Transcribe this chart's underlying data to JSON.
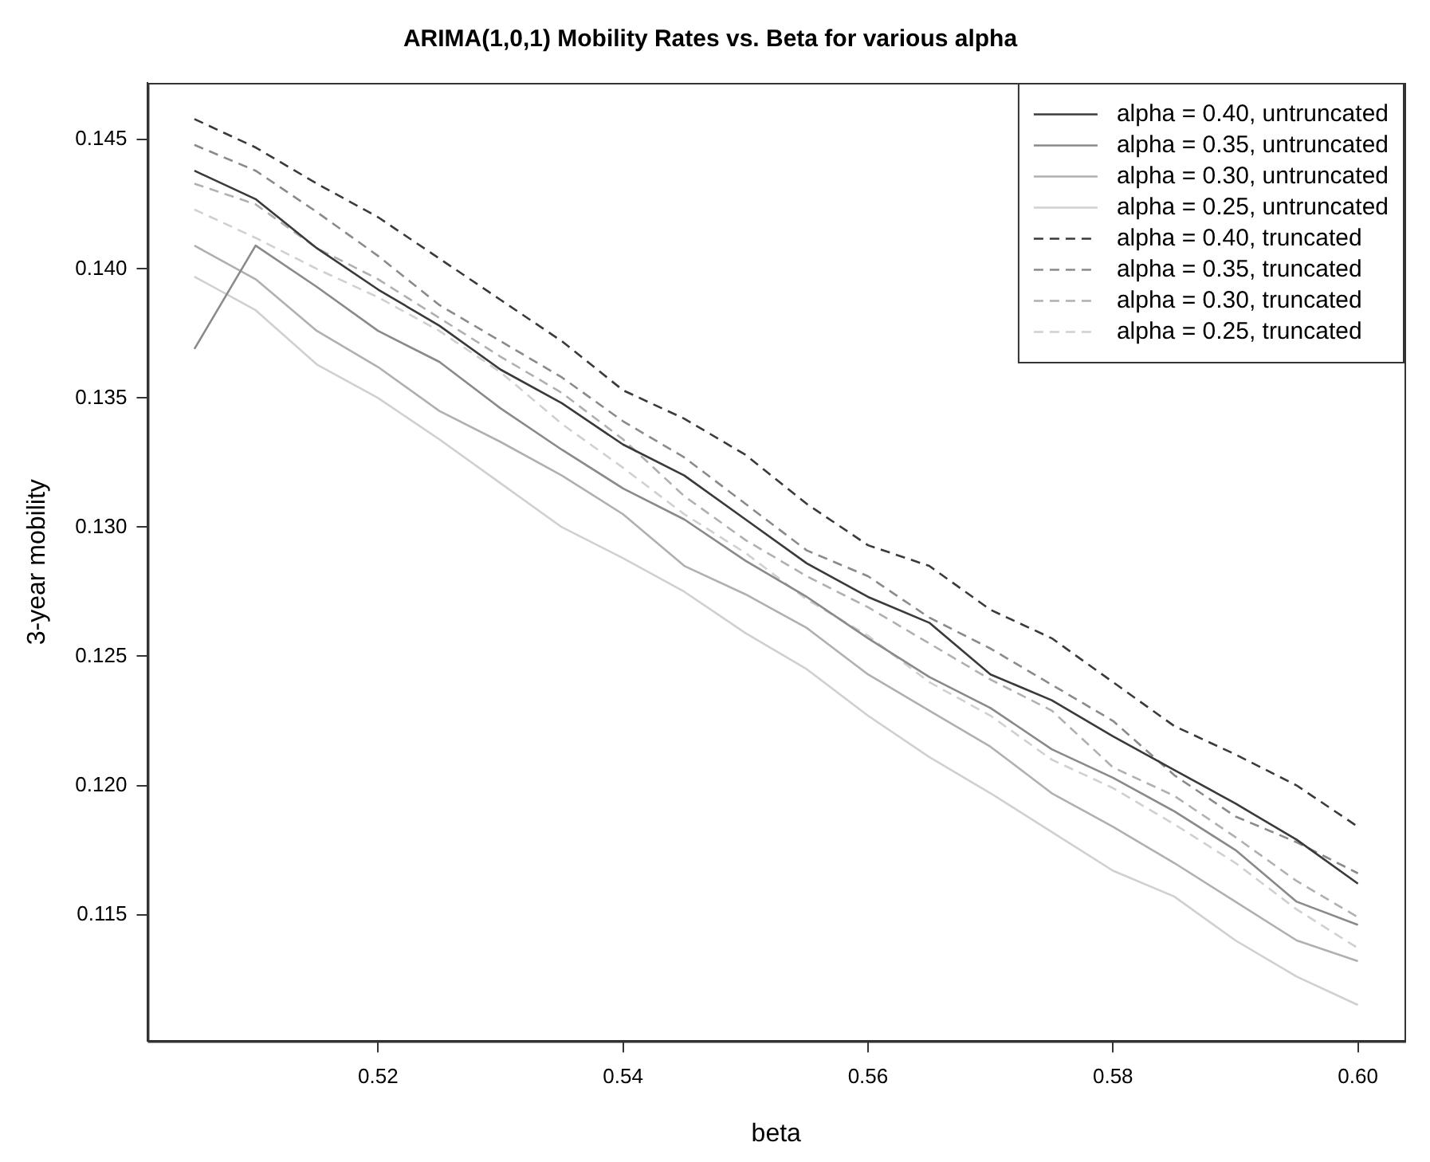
{
  "chart_data": {
    "type": "line",
    "title": "ARIMA(1,0,1) Mobility Rates vs. Beta for various alpha",
    "xlabel": "beta",
    "ylabel": "3-year mobility",
    "x": [
      0.505,
      0.51,
      0.515,
      0.52,
      0.525,
      0.53,
      0.535,
      0.54,
      0.545,
      0.55,
      0.555,
      0.56,
      0.565,
      0.57,
      0.575,
      0.58,
      0.585,
      0.59,
      0.595,
      0.6
    ],
    "xlim": [
      0.5012,
      0.6038
    ],
    "xticks": [
      {
        "value": 0.52,
        "label": "0.52"
      },
      {
        "value": 0.54,
        "label": "0.54"
      },
      {
        "value": 0.56,
        "label": "0.56"
      },
      {
        "value": 0.58,
        "label": "0.58"
      },
      {
        "value": 0.6,
        "label": "0.60"
      }
    ],
    "ylim": [
      0.1101,
      0.1472
    ],
    "yticks": [
      0.115,
      {
        "value": 0.12,
        "label": "0.120"
      },
      0.125,
      {
        "value": 0.13,
        "label": "0.130"
      },
      0.135,
      {
        "value": 0.14,
        "label": "0.140"
      },
      0.145
    ],
    "grid": false,
    "legend": "top right",
    "marker": "none",
    "series": [
      {
        "name": "alpha = 0.40, untruncated",
        "color": "#3a3a3a",
        "line_style": "solid",
        "values": [
          0.1438,
          0.1427,
          0.1408,
          0.1392,
          0.1378,
          0.1361,
          0.1348,
          0.1332,
          0.132,
          0.1303,
          0.1286,
          0.1273,
          0.1263,
          0.1243,
          0.1233,
          0.1219,
          0.1206,
          0.1193,
          0.1179,
          0.1162
        ]
      },
      {
        "name": "alpha = 0.35, untruncated",
        "color": "#8a8a8a",
        "line_style": "solid",
        "values": [
          0.1369,
          0.1409,
          0.1393,
          0.1376,
          0.1364,
          0.1346,
          0.133,
          0.1315,
          0.1303,
          0.1287,
          0.1273,
          0.1257,
          0.1242,
          0.123,
          0.1214,
          0.1203,
          0.119,
          0.1175,
          0.1155,
          0.1146
        ]
      },
      {
        "name": "alpha = 0.30, untruncated",
        "color": "#b0b0b0",
        "line_style": "solid",
        "values": [
          0.1409,
          0.1396,
          0.1376,
          0.1362,
          0.1345,
          0.1333,
          0.132,
          0.1305,
          0.1285,
          0.1274,
          0.1261,
          0.1243,
          0.1229,
          0.1215,
          0.1197,
          0.1184,
          0.117,
          0.1155,
          0.114,
          0.1132
        ]
      },
      {
        "name": "alpha = 0.25, untruncated",
        "color": "#d0d0d0",
        "line_style": "solid",
        "values": [
          0.1397,
          0.1384,
          0.1363,
          0.135,
          0.1334,
          0.1317,
          0.13,
          0.1288,
          0.1275,
          0.1259,
          0.1245,
          0.1227,
          0.1211,
          0.1197,
          0.1182,
          0.1167,
          0.1157,
          0.114,
          0.1126,
          0.1115
        ]
      },
      {
        "name": "alpha = 0.40, truncated",
        "color": "#3a3a3a",
        "line_style": "dashed",
        "values": [
          0.1458,
          0.1447,
          0.1433,
          0.142,
          0.1404,
          0.1388,
          0.1372,
          0.1353,
          0.1342,
          0.1328,
          0.1309,
          0.1293,
          0.1285,
          0.1268,
          0.1257,
          0.124,
          0.1223,
          0.1212,
          0.12,
          0.1184
        ]
      },
      {
        "name": "alpha = 0.35, truncated",
        "color": "#8a8a8a",
        "line_style": "dashed",
        "values": [
          0.1448,
          0.1438,
          0.1422,
          0.1405,
          0.1386,
          0.1372,
          0.1358,
          0.1341,
          0.1327,
          0.1309,
          0.1291,
          0.1281,
          0.1265,
          0.1253,
          0.1239,
          0.1225,
          0.1204,
          0.1188,
          0.1178,
          0.1166
        ]
      },
      {
        "name": "alpha = 0.30, truncated",
        "color": "#b0b0b0",
        "line_style": "dashed",
        "values": [
          0.1433,
          0.1425,
          0.1408,
          0.1396,
          0.1381,
          0.1366,
          0.1352,
          0.1334,
          0.1312,
          0.1295,
          0.1281,
          0.1269,
          0.1255,
          0.1241,
          0.1229,
          0.1207,
          0.1196,
          0.118,
          0.1163,
          0.1149
        ]
      },
      {
        "name": "alpha = 0.25, truncated",
        "color": "#d0d0d0",
        "line_style": "dashed",
        "values": [
          0.1423,
          0.1412,
          0.14,
          0.1389,
          0.1376,
          0.136,
          0.134,
          0.1323,
          0.1305,
          0.129,
          0.1272,
          0.1258,
          0.124,
          0.1227,
          0.121,
          0.1199,
          0.1185,
          0.117,
          0.1152,
          0.1137
        ]
      }
    ]
  }
}
